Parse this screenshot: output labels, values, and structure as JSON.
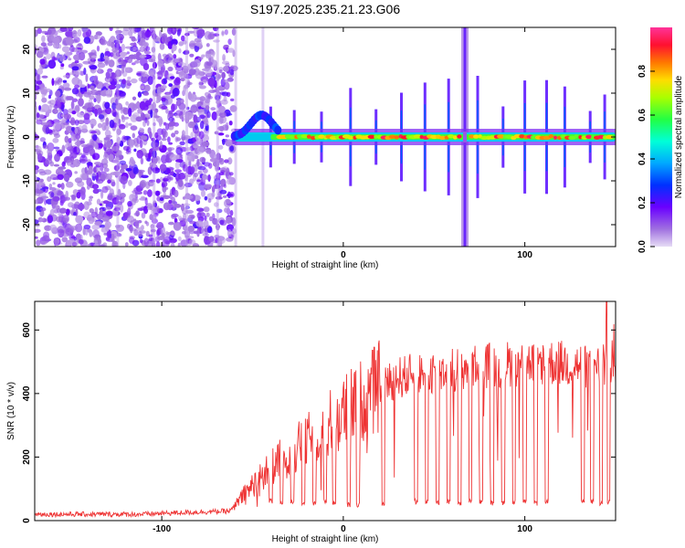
{
  "title": "S197.2025.235.21.23.G06",
  "chart_data": [
    {
      "type": "heatmap",
      "name": "spectrogram",
      "xlabel": "Height of straight line (km)",
      "ylabel": "Frequency (Hz)",
      "xlim": [
        -170,
        150
      ],
      "ylim": [
        -25,
        25
      ],
      "xticks": [
        -100,
        0,
        100
      ],
      "yticks": [
        20,
        10,
        0,
        -10,
        -20
      ],
      "colorbar": {
        "label": "Normalized spectral amplitude",
        "range": [
          0,
          1
        ],
        "ticks": [
          "0.0",
          "0.2",
          "0.4",
          "0.6",
          "0.8"
        ],
        "tick_values": [
          0.0,
          0.2,
          0.4,
          0.6,
          0.8
        ],
        "colors": [
          "#d8c8f2",
          "#8a2be2",
          "#3a00ff",
          "#00aaff",
          "#00ffd0",
          "#33ff33",
          "#ccff00",
          "#ffcc00",
          "#ff5500",
          "#ff0033",
          "#ff3399"
        ]
      },
      "ridge": {
        "frequency_hz": 0,
        "start_height_km": -60,
        "gap_height_km": 67
      },
      "notch_heights_km": [
        -40,
        -27,
        -12,
        4,
        18,
        32,
        45,
        58,
        74,
        88,
        100,
        112,
        122,
        136,
        144
      ]
    },
    {
      "type": "line",
      "name": "snr",
      "xlabel": "Height of straight line (km)",
      "ylabel": "SNR (10 * v/v)",
      "xlim": [
        -170,
        150
      ],
      "ylim": [
        0,
        690
      ],
      "xticks": [
        -100,
        0,
        100
      ],
      "yticks": [
        0,
        200,
        400,
        600
      ],
      "color": "#ee3333",
      "series_profile": {
        "x": [
          -170,
          -110,
          -90,
          -62,
          -55,
          -45,
          -35,
          -25,
          -15,
          -5,
          5,
          15,
          22,
          30,
          50,
          80,
          110,
          130,
          150
        ],
        "y": [
          20,
          20,
          25,
          30,
          80,
          140,
          190,
          230,
          270,
          320,
          360,
          400,
          430,
          450,
          470,
          490,
          500,
          490,
          480
        ]
      },
      "dips": [
        {
          "x": -40,
          "y": 60
        },
        {
          "x": -34,
          "y": 55
        },
        {
          "x": -28,
          "y": 60
        },
        {
          "x": -22,
          "y": 55
        },
        {
          "x": -16,
          "y": 55
        },
        {
          "x": -10,
          "y": 60
        },
        {
          "x": -5,
          "y": 55
        },
        {
          "x": 3,
          "y": 50
        },
        {
          "x": 8,
          "y": 50
        },
        {
          "x": 22,
          "y": 55
        },
        {
          "x": 40,
          "y": 60
        },
        {
          "x": 46,
          "y": 60
        },
        {
          "x": 52,
          "y": 55
        },
        {
          "x": 58,
          "y": 60
        },
        {
          "x": 64,
          "y": 55
        },
        {
          "x": 70,
          "y": 60
        },
        {
          "x": 76,
          "y": 60
        },
        {
          "x": 82,
          "y": 55
        },
        {
          "x": 88,
          "y": 55
        },
        {
          "x": 94,
          "y": 60
        },
        {
          "x": 100,
          "y": 60
        },
        {
          "x": 106,
          "y": 55
        },
        {
          "x": 112,
          "y": 60
        },
        {
          "x": 132,
          "y": 60
        },
        {
          "x": 137,
          "y": 60
        },
        {
          "x": 142,
          "y": 55
        },
        {
          "x": 146,
          "y": 60
        }
      ],
      "peak": {
        "x": 145,
        "y": 690
      }
    }
  ]
}
